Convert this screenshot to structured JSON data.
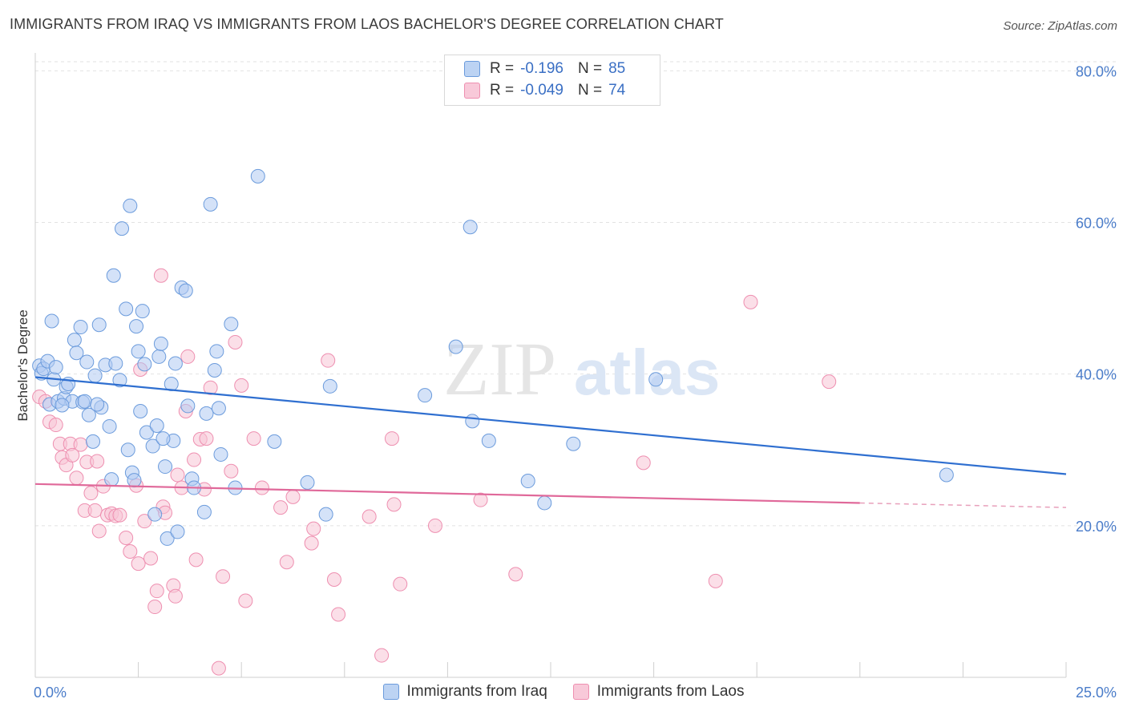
{
  "title": "IMMIGRANTS FROM IRAQ VS IMMIGRANTS FROM LAOS BACHELOR'S DEGREE CORRELATION CHART",
  "source": "Source: ZipAtlas.com",
  "watermark": {
    "zip": "ZIP",
    "atlas": "atlas"
  },
  "legend": {
    "r_label": "R =",
    "n_label": "N =",
    "rows": [
      {
        "r": "-0.196",
        "n": "85",
        "color": "#6b9bdc"
      },
      {
        "r": "-0.049",
        "n": "74",
        "color": "#ee8fb0"
      }
    ]
  },
  "colors": {
    "iraq": "#6b9bdc",
    "iraq_line": "#2f6fd0",
    "laos": "#ee8fb0",
    "laos_line": "#e0699a",
    "tick_text": "#4a7cc9"
  },
  "chart_data": {
    "type": "scatter",
    "title": "IMMIGRANTS FROM IRAQ VS IMMIGRANTS FROM LAOS BACHELOR'S DEGREE CORRELATION CHART",
    "xlabel": "",
    "ylabel": "Bachelor's Degree",
    "xlim": [
      0,
      25
    ],
    "ylim": [
      0,
      83
    ],
    "x_tick_labels": [
      "0.0%",
      "25.0%"
    ],
    "y_ticks": [
      20,
      40,
      60,
      80
    ],
    "y_tick_labels": [
      "20.0%",
      "40.0%",
      "60.0%",
      "80.0%"
    ],
    "grid": true,
    "legend_position": "bottom",
    "series": [
      {
        "name": "Immigrants from Iraq",
        "r": -0.196,
        "n": 85,
        "trend": {
          "x": [
            0,
            25
          ],
          "y": [
            39.6,
            26.8
          ]
        },
        "points": [
          [
            0.1,
            41.1
          ],
          [
            0.15,
            40.1
          ],
          [
            0.2,
            40.7
          ],
          [
            0.3,
            41.7
          ],
          [
            0.35,
            36.0
          ],
          [
            0.4,
            47.0
          ],
          [
            0.45,
            39.3
          ],
          [
            0.5,
            40.9
          ],
          [
            0.55,
            36.4
          ],
          [
            0.7,
            36.8
          ],
          [
            0.75,
            38.3
          ],
          [
            0.8,
            38.7
          ],
          [
            0.9,
            36.4
          ],
          [
            0.95,
            44.5
          ],
          [
            1.0,
            42.8
          ],
          [
            1.1,
            46.2
          ],
          [
            1.15,
            36.3
          ],
          [
            1.2,
            36.4
          ],
          [
            1.25,
            41.6
          ],
          [
            1.3,
            34.6
          ],
          [
            1.4,
            31.1
          ],
          [
            1.45,
            39.8
          ],
          [
            1.55,
            46.5
          ],
          [
            1.6,
            35.6
          ],
          [
            1.7,
            41.2
          ],
          [
            1.8,
            33.1
          ],
          [
            1.85,
            26.1
          ],
          [
            1.9,
            53.0
          ],
          [
            1.95,
            41.4
          ],
          [
            2.05,
            39.2
          ],
          [
            2.1,
            59.2
          ],
          [
            2.2,
            48.6
          ],
          [
            2.25,
            30.0
          ],
          [
            2.3,
            62.2
          ],
          [
            2.35,
            27.0
          ],
          [
            2.45,
            46.3
          ],
          [
            2.5,
            43.0
          ],
          [
            2.55,
            35.1
          ],
          [
            2.6,
            48.3
          ],
          [
            2.65,
            41.3
          ],
          [
            2.7,
            32.3
          ],
          [
            2.85,
            30.5
          ],
          [
            2.9,
            21.5
          ],
          [
            2.95,
            33.2
          ],
          [
            3.0,
            42.3
          ],
          [
            3.05,
            44.0
          ],
          [
            3.15,
            27.8
          ],
          [
            3.2,
            18.3
          ],
          [
            3.3,
            38.7
          ],
          [
            3.35,
            31.2
          ],
          [
            3.4,
            41.4
          ],
          [
            3.45,
            19.2
          ],
          [
            3.55,
            51.4
          ],
          [
            3.65,
            51.0
          ],
          [
            3.7,
            35.8
          ],
          [
            3.8,
            26.2
          ],
          [
            3.85,
            25.0
          ],
          [
            4.1,
            21.8
          ],
          [
            4.15,
            34.8
          ],
          [
            4.25,
            62.4
          ],
          [
            4.35,
            40.5
          ],
          [
            4.4,
            43.0
          ],
          [
            4.45,
            35.5
          ],
          [
            4.5,
            29.4
          ],
          [
            4.75,
            46.6
          ],
          [
            4.85,
            25.0
          ],
          [
            5.4,
            66.1
          ],
          [
            5.8,
            31.1
          ],
          [
            6.6,
            25.7
          ],
          [
            7.05,
            21.5
          ],
          [
            7.15,
            38.4
          ],
          [
            9.45,
            37.2
          ],
          [
            10.2,
            43.6
          ],
          [
            10.55,
            59.4
          ],
          [
            10.6,
            33.8
          ],
          [
            11.0,
            31.2
          ],
          [
            11.95,
            25.9
          ],
          [
            12.35,
            23.0
          ],
          [
            13.05,
            30.8
          ],
          [
            15.05,
            39.3
          ],
          [
            22.1,
            26.7
          ],
          [
            1.5,
            36.0
          ],
          [
            3.1,
            31.5
          ],
          [
            2.4,
            26.0
          ],
          [
            0.65,
            35.9
          ]
        ]
      },
      {
        "name": "Immigrants from Laos",
        "r": -0.049,
        "n": 74,
        "trend": {
          "x": [
            0,
            20
          ],
          "y": [
            25.5,
            23.0
          ]
        },
        "trend_dashed": {
          "x": [
            20,
            25
          ],
          "y": [
            23.0,
            22.4
          ]
        },
        "points": [
          [
            0.1,
            37.0
          ],
          [
            0.25,
            36.4
          ],
          [
            0.35,
            33.7
          ],
          [
            0.5,
            33.3
          ],
          [
            0.6,
            30.8
          ],
          [
            0.65,
            29.0
          ],
          [
            0.75,
            28.0
          ],
          [
            0.85,
            30.8
          ],
          [
            0.9,
            29.3
          ],
          [
            1.0,
            26.3
          ],
          [
            1.1,
            30.7
          ],
          [
            1.2,
            22.0
          ],
          [
            1.25,
            28.4
          ],
          [
            1.35,
            24.3
          ],
          [
            1.45,
            22.0
          ],
          [
            1.5,
            28.5
          ],
          [
            1.55,
            19.3
          ],
          [
            1.65,
            25.2
          ],
          [
            1.75,
            21.4
          ],
          [
            1.85,
            21.6
          ],
          [
            1.95,
            21.3
          ],
          [
            2.05,
            21.4
          ],
          [
            2.2,
            18.4
          ],
          [
            2.3,
            16.6
          ],
          [
            2.45,
            25.3
          ],
          [
            2.5,
            15.0
          ],
          [
            2.55,
            40.6
          ],
          [
            2.65,
            20.6
          ],
          [
            2.8,
            15.7
          ],
          [
            2.9,
            9.3
          ],
          [
            2.95,
            11.4
          ],
          [
            3.05,
            53.0
          ],
          [
            3.1,
            22.5
          ],
          [
            3.15,
            21.7
          ],
          [
            3.35,
            12.1
          ],
          [
            3.4,
            10.7
          ],
          [
            3.45,
            26.7
          ],
          [
            3.55,
            25.0
          ],
          [
            3.65,
            35.1
          ],
          [
            3.7,
            42.3
          ],
          [
            3.85,
            28.7
          ],
          [
            4.0,
            31.4
          ],
          [
            4.1,
            24.8
          ],
          [
            4.15,
            31.5
          ],
          [
            4.25,
            38.2
          ],
          [
            4.45,
            1.2
          ],
          [
            4.55,
            13.3
          ],
          [
            4.75,
            27.2
          ],
          [
            4.85,
            44.2
          ],
          [
            5.0,
            38.5
          ],
          [
            5.1,
            10.1
          ],
          [
            5.3,
            31.5
          ],
          [
            5.5,
            25.0
          ],
          [
            5.95,
            22.4
          ],
          [
            6.1,
            15.2
          ],
          [
            6.25,
            23.8
          ],
          [
            6.7,
            17.7
          ],
          [
            6.75,
            19.6
          ],
          [
            7.1,
            41.8
          ],
          [
            7.25,
            12.9
          ],
          [
            7.35,
            8.3
          ],
          [
            8.1,
            21.2
          ],
          [
            8.4,
            2.9
          ],
          [
            8.65,
            31.5
          ],
          [
            8.7,
            22.8
          ],
          [
            8.85,
            12.3
          ],
          [
            9.7,
            20.0
          ],
          [
            10.8,
            23.4
          ],
          [
            11.65,
            13.6
          ],
          [
            14.75,
            28.3
          ],
          [
            16.5,
            12.7
          ],
          [
            17.35,
            49.5
          ],
          [
            19.25,
            39.0
          ],
          [
            3.9,
            15.5
          ]
        ]
      }
    ]
  }
}
